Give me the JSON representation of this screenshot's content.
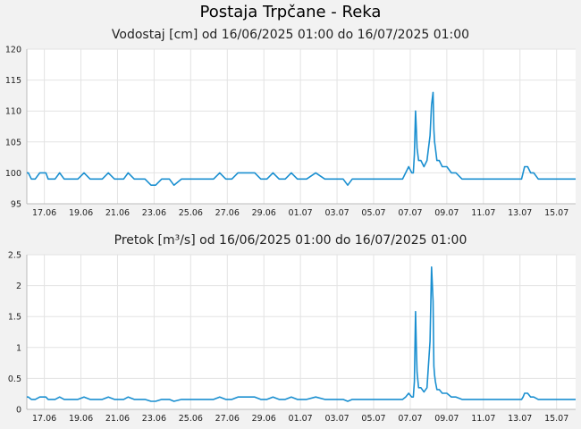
{
  "page": {
    "title": "Postaja Trpčane - Reka"
  },
  "chart_data": [
    {
      "type": "line",
      "title": "Vodostaj [cm] od 16/06/2025 01:00 do 16/07/2025 01:00",
      "xlabel": "",
      "ylabel": "",
      "ylim": [
        95,
        120
      ],
      "yticks": [
        "95",
        "100",
        "105",
        "110",
        "115",
        "120"
      ],
      "xlim": [
        "2025-06-16 01:00",
        "2025-07-16 01:00"
      ],
      "xticks": [
        "17.06",
        "19.06",
        "21.06",
        "23.06",
        "25.06",
        "27.06",
        "29.06",
        "01.07",
        "03.07",
        "05.07",
        "07.07",
        "09.07",
        "11.07",
        "13.07",
        "15.07"
      ],
      "grid": true,
      "line_color": "#1a8fd0",
      "series": [
        {
          "x": [
            "2025-06-16 01:00",
            "2025-06-16 03:00",
            "2025-06-16 07:00",
            "2025-06-16 12:00",
            "2025-06-16 18:00",
            "2025-06-17 02:00",
            "2025-06-17 05:00",
            "2025-06-17 09:00",
            "2025-06-17 14:00",
            "2025-06-17 20:00",
            "2025-06-18 02:00",
            "2025-06-18 10:00",
            "2025-06-18 14:00",
            "2025-06-18 20:00",
            "2025-06-19 04:00",
            "2025-06-19 12:00",
            "2025-06-19 20:00",
            "2025-06-20 04:00",
            "2025-06-20 12:00",
            "2025-06-20 20:00",
            "2025-06-21 04:00",
            "2025-06-21 08:00",
            "2025-06-21 14:00",
            "2025-06-21 22:00",
            "2025-06-22 06:00",
            "2025-06-22 12:00",
            "2025-06-22 20:00",
            "2025-06-23 02:00",
            "2025-06-23 10:00",
            "2025-06-23 20:00",
            "2025-06-24 02:00",
            "2025-06-24 12:00",
            "2025-06-24 18:00",
            "2025-06-24 20:00",
            "2025-06-25 04:00",
            "2025-06-25 12:00",
            "2025-06-25 22:00",
            "2025-06-26 06:00",
            "2025-06-26 14:00",
            "2025-06-26 22:00",
            "2025-06-27 06:00",
            "2025-06-27 14:00",
            "2025-06-27 22:00",
            "2025-06-28 06:00",
            "2025-06-28 12:00",
            "2025-06-28 20:00",
            "2025-06-29 04:00",
            "2025-06-29 12:00",
            "2025-06-29 20:00",
            "2025-06-30 04:00",
            "2025-06-30 12:00",
            "2025-06-30 20:00",
            "2025-07-01 08:00",
            "2025-07-01 20:00",
            "2025-07-02 08:00",
            "2025-07-02 20:00",
            "2025-07-03 08:00",
            "2025-07-03 14:00",
            "2025-07-03 20:00",
            "2025-07-04 08:00",
            "2025-07-04 20:00",
            "2025-07-05 08:00",
            "2025-07-05 20:00",
            "2025-07-06 08:00",
            "2025-07-06 14:00",
            "2025-07-06 18:00",
            "2025-07-06 22:00",
            "2025-07-07 02:00",
            "2025-07-07 04:00",
            "2025-07-07 05:30",
            "2025-07-07 07:00",
            "2025-07-07 08:00",
            "2025-07-07 09:00",
            "2025-07-07 11:00",
            "2025-07-07 14:00",
            "2025-07-07 18:00",
            "2025-07-07 22:00",
            "2025-07-08 02:00",
            "2025-07-08 04:00",
            "2025-07-08 06:00",
            "2025-07-08 07:00",
            "2025-07-08 08:00",
            "2025-07-08 09:00",
            "2025-07-08 11:00",
            "2025-07-08 14:00",
            "2025-07-08 18:00",
            "2025-07-09 00:00",
            "2025-07-09 06:00",
            "2025-07-09 12:00",
            "2025-07-09 20:00",
            "2025-07-10 04:00",
            "2025-07-10 12:00",
            "2025-07-10 20:00",
            "2025-07-11 04:00",
            "2025-07-11 12:00",
            "2025-07-11 20:00",
            "2025-07-12 08:00",
            "2025-07-12 20:00",
            "2025-07-13 02:00",
            "2025-07-13 04:00",
            "2025-07-13 06:00",
            "2025-07-13 10:00",
            "2025-07-13 14:00",
            "2025-07-13 18:00",
            "2025-07-14 00:00",
            "2025-07-14 08:00",
            "2025-07-14 20:00",
            "2025-07-15 08:00",
            "2025-07-15 20:00",
            "2025-07-16 01:00"
          ],
          "values": [
            100,
            100,
            99,
            99,
            100,
            100,
            99,
            99,
            99,
            100,
            99,
            99,
            99,
            99,
            100,
            99,
            99,
            99,
            100,
            99,
            99,
            99,
            100,
            99,
            99,
            99,
            98,
            98,
            99,
            99,
            98,
            99,
            99,
            99,
            99,
            99,
            99,
            99,
            100,
            99,
            99,
            100,
            100,
            100,
            100,
            99,
            99,
            100,
            99,
            99,
            100,
            99,
            99,
            100,
            99,
            99,
            99,
            98,
            99,
            99,
            99,
            99,
            99,
            99,
            99,
            100,
            101,
            100,
            100,
            103,
            110,
            107,
            104,
            102,
            102,
            101,
            102,
            106,
            111,
            113,
            107,
            105,
            104,
            102,
            102,
            101,
            101,
            100,
            100,
            99,
            99,
            99,
            99,
            99,
            99,
            99,
            99,
            99,
            99,
            100,
            101,
            101,
            100,
            100,
            99,
            99,
            99,
            99,
            99,
            99
          ]
        }
      ]
    },
    {
      "type": "line",
      "title": "Pretok [m³/s] od 16/06/2025 01:00 do 16/07/2025 01:00",
      "xlabel": "",
      "ylabel": "",
      "ylim": [
        0,
        2.5
      ],
      "yticks": [
        "0",
        "0.5",
        "1",
        "1.5",
        "2",
        "2.5"
      ],
      "xlim": [
        "2025-06-16 01:00",
        "2025-07-16 01:00"
      ],
      "xticks": [
        "17.06",
        "19.06",
        "21.06",
        "23.06",
        "25.06",
        "27.06",
        "29.06",
        "01.07",
        "03.07",
        "05.07",
        "07.07",
        "09.07",
        "11.07",
        "13.07",
        "15.07"
      ],
      "grid": true,
      "line_color": "#1a8fd0",
      "series": [
        {
          "x": [
            "2025-06-16 01:00",
            "2025-06-16 03:00",
            "2025-06-16 07:00",
            "2025-06-16 12:00",
            "2025-06-16 18:00",
            "2025-06-17 02:00",
            "2025-06-17 05:00",
            "2025-06-17 09:00",
            "2025-06-17 14:00",
            "2025-06-17 20:00",
            "2025-06-18 02:00",
            "2025-06-18 10:00",
            "2025-06-18 14:00",
            "2025-06-18 20:00",
            "2025-06-19 04:00",
            "2025-06-19 12:00",
            "2025-06-19 20:00",
            "2025-06-20 04:00",
            "2025-06-20 12:00",
            "2025-06-20 20:00",
            "2025-06-21 04:00",
            "2025-06-21 08:00",
            "2025-06-21 14:00",
            "2025-06-21 22:00",
            "2025-06-22 06:00",
            "2025-06-22 12:00",
            "2025-06-22 20:00",
            "2025-06-23 02:00",
            "2025-06-23 10:00",
            "2025-06-23 20:00",
            "2025-06-24 02:00",
            "2025-06-24 12:00",
            "2025-06-24 18:00",
            "2025-06-24 20:00",
            "2025-06-25 04:00",
            "2025-06-25 12:00",
            "2025-06-25 22:00",
            "2025-06-26 06:00",
            "2025-06-26 14:00",
            "2025-06-26 22:00",
            "2025-06-27 06:00",
            "2025-06-27 14:00",
            "2025-06-27 22:00",
            "2025-06-28 06:00",
            "2025-06-28 12:00",
            "2025-06-28 20:00",
            "2025-06-29 04:00",
            "2025-06-29 12:00",
            "2025-06-29 20:00",
            "2025-06-30 04:00",
            "2025-06-30 12:00",
            "2025-06-30 20:00",
            "2025-07-01 08:00",
            "2025-07-01 20:00",
            "2025-07-02 08:00",
            "2025-07-02 20:00",
            "2025-07-03 08:00",
            "2025-07-03 14:00",
            "2025-07-03 20:00",
            "2025-07-04 08:00",
            "2025-07-04 20:00",
            "2025-07-05 08:00",
            "2025-07-05 20:00",
            "2025-07-06 08:00",
            "2025-07-06 14:00",
            "2025-07-06 18:00",
            "2025-07-06 22:00",
            "2025-07-07 02:00",
            "2025-07-07 04:00",
            "2025-07-07 05:30",
            "2025-07-07 07:00",
            "2025-07-07 08:00",
            "2025-07-07 09:00",
            "2025-07-07 11:00",
            "2025-07-07 14:00",
            "2025-07-07 18:00",
            "2025-07-07 22:00",
            "2025-07-08 02:00",
            "2025-07-08 04:00",
            "2025-07-08 06:00",
            "2025-07-08 07:00",
            "2025-07-08 08:00",
            "2025-07-08 09:00",
            "2025-07-08 11:00",
            "2025-07-08 14:00",
            "2025-07-08 18:00",
            "2025-07-09 00:00",
            "2025-07-09 06:00",
            "2025-07-09 12:00",
            "2025-07-09 20:00",
            "2025-07-10 04:00",
            "2025-07-10 12:00",
            "2025-07-10 20:00",
            "2025-07-11 04:00",
            "2025-07-11 12:00",
            "2025-07-11 20:00",
            "2025-07-12 08:00",
            "2025-07-12 20:00",
            "2025-07-13 02:00",
            "2025-07-13 04:00",
            "2025-07-13 06:00",
            "2025-07-13 10:00",
            "2025-07-13 14:00",
            "2025-07-13 18:00",
            "2025-07-14 00:00",
            "2025-07-14 08:00",
            "2025-07-14 20:00",
            "2025-07-15 08:00",
            "2025-07-15 20:00",
            "2025-07-16 01:00"
          ],
          "values": [
            0.2,
            0.2,
            0.16,
            0.16,
            0.2,
            0.2,
            0.16,
            0.16,
            0.16,
            0.2,
            0.16,
            0.16,
            0.16,
            0.16,
            0.2,
            0.16,
            0.16,
            0.16,
            0.2,
            0.16,
            0.16,
            0.16,
            0.2,
            0.16,
            0.16,
            0.16,
            0.13,
            0.13,
            0.16,
            0.16,
            0.13,
            0.16,
            0.16,
            0.16,
            0.16,
            0.16,
            0.16,
            0.16,
            0.2,
            0.16,
            0.16,
            0.2,
            0.2,
            0.2,
            0.2,
            0.16,
            0.16,
            0.2,
            0.16,
            0.16,
            0.2,
            0.16,
            0.16,
            0.2,
            0.16,
            0.16,
            0.16,
            0.13,
            0.16,
            0.16,
            0.16,
            0.16,
            0.16,
            0.16,
            0.16,
            0.2,
            0.26,
            0.2,
            0.2,
            0.45,
            1.58,
            1.0,
            0.6,
            0.35,
            0.35,
            0.28,
            0.35,
            1.1,
            2.3,
            1.75,
            0.7,
            0.55,
            0.45,
            0.32,
            0.32,
            0.26,
            0.26,
            0.2,
            0.2,
            0.16,
            0.16,
            0.16,
            0.16,
            0.16,
            0.16,
            0.16,
            0.16,
            0.16,
            0.16,
            0.2,
            0.26,
            0.26,
            0.2,
            0.2,
            0.16,
            0.16,
            0.16,
            0.16,
            0.16,
            0.16
          ]
        }
      ]
    }
  ]
}
